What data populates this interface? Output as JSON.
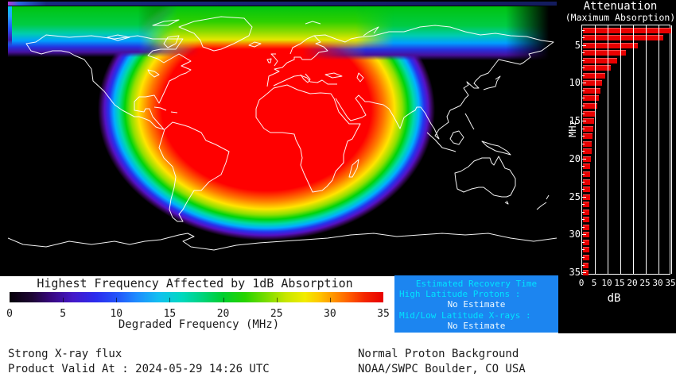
{
  "map": {
    "legend_title": "Highest Frequency Affected by 1dB Absorption",
    "legend_axis_label": "Degraded Frequency (MHz)",
    "legend_ticks": [
      0,
      5,
      10,
      15,
      20,
      25,
      30,
      35
    ],
    "colormap_stops": [
      [
        0,
        "#050008"
      ],
      [
        6,
        "#1d0533"
      ],
      [
        11,
        "#37077e"
      ],
      [
        17,
        "#4418c8"
      ],
      [
        23,
        "#2b2bee"
      ],
      [
        29,
        "#2356fa"
      ],
      [
        34,
        "#1e8cff"
      ],
      [
        40,
        "#12c0f0"
      ],
      [
        46,
        "#00d8c0"
      ],
      [
        51,
        "#00d484"
      ],
      [
        57,
        "#00cf30"
      ],
      [
        63,
        "#27d400"
      ],
      [
        69,
        "#7fdd00"
      ],
      [
        74,
        "#c8e600"
      ],
      [
        79,
        "#f2ec00"
      ],
      [
        83,
        "#ffc400"
      ],
      [
        87,
        "#ff9000"
      ],
      [
        91,
        "#ff5a00"
      ],
      [
        95,
        "#f42600"
      ],
      [
        100,
        "#e80000"
      ]
    ]
  },
  "attenuation_panel": {
    "title": "Attenuation",
    "subtitle": "(Maximum Absorption)",
    "xlabel": "dB",
    "ylabel": "MHz",
    "x_ticks": [
      0,
      5,
      10,
      15,
      20,
      25,
      30,
      35
    ],
    "y_ticks": [
      5,
      10,
      15,
      20,
      25,
      30,
      35
    ],
    "bar_color": "#e80000"
  },
  "recovery_box": {
    "title": "Estimated Recovery Time",
    "rows": [
      {
        "label": "High Latitude Protons :",
        "value": "No Estimate"
      },
      {
        "label": "Mid/Low Latitude X-rays :",
        "value": "No Estimate"
      }
    ],
    "bg_color": "#1c85f0",
    "label_color": "#00e4ff",
    "value_color": "#eef9ff"
  },
  "status": {
    "xray_condition": "Strong X-ray flux",
    "product_valid": "Product Valid At : 2024-05-29 14:26 UTC",
    "proton_condition": "Normal Proton Background",
    "agency": "NOAA/SWPC Boulder, CO USA"
  },
  "chart_data": [
    {
      "type": "bar",
      "orientation": "horizontal",
      "title": "Attenuation (Maximum Absorption)",
      "xlabel": "dB",
      "ylabel": "MHz",
      "xlim": [
        0,
        35
      ],
      "grid": "on",
      "legend_position": "none",
      "bar_color": "#e80000",
      "categories": [
        3,
        4,
        5,
        6,
        7,
        8,
        9,
        10,
        11,
        12,
        13,
        14,
        15,
        16,
        17,
        18,
        19,
        20,
        21,
        22,
        23,
        24,
        25,
        26,
        27,
        28,
        29,
        30,
        31,
        32,
        33,
        34,
        35
      ],
      "values": [
        35,
        31.5,
        21.5,
        17,
        13.5,
        11,
        8.8,
        7.6,
        6.8,
        6.3,
        5.6,
        5.0,
        4.5,
        4.1,
        3.8,
        3.5,
        3.3,
        3.1,
        2.9,
        2.8,
        2.8,
        2.7,
        2.7,
        2.6,
        2.6,
        2.5,
        2.5,
        2.5,
        2.4,
        2.4,
        2.4,
        2.3,
        2.3
      ]
    },
    {
      "type": "heatmap",
      "title": "Highest Frequency Affected by 1dB Absorption",
      "xlabel": "Degraded Frequency (MHz)",
      "scale_range": [
        0,
        35
      ],
      "colorbar_ticks": [
        0,
        5,
        10,
        15,
        20,
        25,
        30,
        35
      ],
      "peak_region": "maximum ~35 MHz centered over the Atlantic, Caribbean, West Africa and western Europe (sunlit hemisphere)",
      "min_region": "0 MHz over the night-side Pacific, east Asia, Australia and southern high latitudes"
    }
  ]
}
